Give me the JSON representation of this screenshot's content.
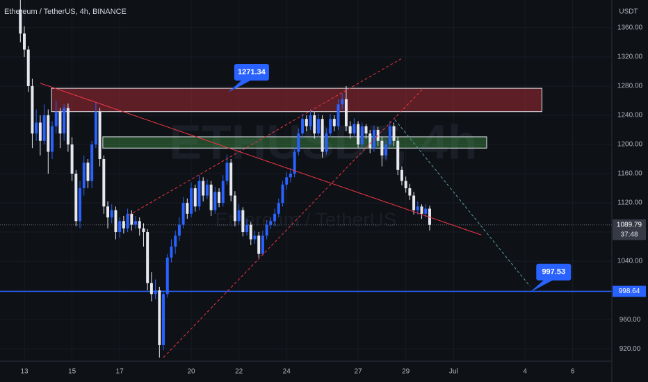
{
  "header": {
    "symbol": "Ethereum / TetherUS, 4h, BINANCE",
    "currency": "USDT",
    "watermark": "ETHUSDT, 4h",
    "watermark_sub": "Ethereum / TetherUS"
  },
  "chart_data": {
    "type": "candlestick",
    "x": [
      -4,
      0,
      4,
      8,
      12,
      16,
      20,
      24,
      28,
      32,
      36,
      40,
      44,
      48,
      52,
      56,
      60,
      64,
      68,
      72,
      76,
      80,
      84,
      88,
      92,
      96,
      100,
      104,
      108,
      112,
      116,
      120,
      124,
      128,
      132,
      136,
      140,
      144,
      148,
      152,
      156,
      160,
      164,
      168,
      172,
      176,
      180,
      184,
      188,
      192,
      196,
      200,
      204,
      208,
      212,
      216,
      220,
      224,
      228,
      232,
      236,
      240,
      244,
      248,
      252,
      256,
      260,
      264,
      268,
      272,
      276,
      280,
      284,
      288,
      292,
      296,
      300,
      304,
      308,
      312,
      316,
      320,
      324,
      328,
      332,
      336,
      340,
      344,
      348,
      352,
      356,
      360,
      364,
      368,
      372,
      376,
      380,
      384,
      388,
      392,
      396,
      400,
      404,
      408
    ],
    "candles": [
      [
        1385,
        1398,
        1340,
        1352
      ],
      [
        1352,
        1362,
        1320,
        1330
      ],
      [
        1330,
        1335,
        1272,
        1280
      ],
      [
        1280,
        1290,
        1195,
        1215
      ],
      [
        1215,
        1248,
        1205,
        1230
      ],
      [
        1230,
        1240,
        1185,
        1205
      ],
      [
        1205,
        1255,
        1200,
        1240
      ],
      [
        1240,
        1248,
        1160,
        1190
      ],
      [
        1190,
        1232,
        1180,
        1225
      ],
      [
        1225,
        1260,
        1215,
        1245
      ],
      [
        1245,
        1250,
        1195,
        1215
      ],
      [
        1215,
        1255,
        1205,
        1250
      ],
      [
        1250,
        1256,
        1190,
        1200
      ],
      [
        1200,
        1210,
        1150,
        1160
      ],
      [
        1160,
        1165,
        1088,
        1095
      ],
      [
        1095,
        1150,
        1085,
        1140
      ],
      [
        1140,
        1185,
        1130,
        1175
      ],
      [
        1175,
        1180,
        1140,
        1150
      ],
      [
        1150,
        1205,
        1140,
        1200
      ],
      [
        1200,
        1258,
        1195,
        1245
      ],
      [
        1245,
        1250,
        1170,
        1180
      ],
      [
        1180,
        1185,
        1105,
        1115
      ],
      [
        1115,
        1122,
        1085,
        1100
      ],
      [
        1100,
        1118,
        1092,
        1110
      ],
      [
        1110,
        1115,
        1070,
        1080
      ],
      [
        1080,
        1100,
        1072,
        1095
      ],
      [
        1095,
        1102,
        1078,
        1085
      ],
      [
        1085,
        1112,
        1080,
        1105
      ],
      [
        1105,
        1110,
        1082,
        1090
      ],
      [
        1090,
        1102,
        1084,
        1095
      ],
      [
        1095,
        1100,
        1075,
        1085
      ],
      [
        1085,
        1092,
        1060,
        1080
      ],
      [
        1080,
        1084,
        1000,
        1010
      ],
      [
        1010,
        1025,
        985,
        995
      ],
      [
        995,
        1015,
        988,
        1000
      ],
      [
        1000,
        1005,
        908,
        925
      ],
      [
        925,
        1000,
        918,
        995
      ],
      [
        995,
        1050,
        990,
        1045
      ],
      [
        1045,
        1070,
        1038,
        1060
      ],
      [
        1060,
        1082,
        1050,
        1075
      ],
      [
        1075,
        1100,
        1068,
        1090
      ],
      [
        1090,
        1128,
        1085,
        1120
      ],
      [
        1120,
        1126,
        1098,
        1105
      ],
      [
        1105,
        1148,
        1100,
        1140
      ],
      [
        1140,
        1145,
        1108,
        1115
      ],
      [
        1115,
        1158,
        1110,
        1150
      ],
      [
        1150,
        1155,
        1122,
        1130
      ],
      [
        1130,
        1152,
        1125,
        1145
      ],
      [
        1145,
        1150,
        1102,
        1110
      ],
      [
        1110,
        1142,
        1105,
        1135
      ],
      [
        1135,
        1140,
        1114,
        1120
      ],
      [
        1120,
        1158,
        1115,
        1150
      ],
      [
        1150,
        1186,
        1145,
        1175
      ],
      [
        1175,
        1180,
        1122,
        1130
      ],
      [
        1130,
        1136,
        1088,
        1095
      ],
      [
        1095,
        1118,
        1090,
        1110
      ],
      [
        1110,
        1114,
        1074,
        1080
      ],
      [
        1080,
        1098,
        1075,
        1090
      ],
      [
        1090,
        1094,
        1062,
        1070
      ],
      [
        1070,
        1082,
        1064,
        1075
      ],
      [
        1075,
        1080,
        1045,
        1050
      ],
      [
        1050,
        1082,
        1048,
        1075
      ],
      [
        1075,
        1096,
        1070,
        1090
      ],
      [
        1090,
        1100,
        1084,
        1095
      ],
      [
        1095,
        1112,
        1088,
        1105
      ],
      [
        1105,
        1126,
        1100,
        1120
      ],
      [
        1120,
        1150,
        1115,
        1145
      ],
      [
        1145,
        1162,
        1138,
        1155
      ],
      [
        1155,
        1168,
        1148,
        1160
      ],
      [
        1160,
        1196,
        1155,
        1190
      ],
      [
        1190,
        1222,
        1185,
        1215
      ],
      [
        1215,
        1242,
        1208,
        1235
      ],
      [
        1235,
        1240,
        1218,
        1225
      ],
      [
        1225,
        1248,
        1220,
        1240
      ],
      [
        1240,
        1245,
        1208,
        1215
      ],
      [
        1215,
        1242,
        1210,
        1235
      ],
      [
        1235,
        1240,
        1182,
        1190
      ],
      [
        1190,
        1222,
        1186,
        1215
      ],
      [
        1215,
        1242,
        1210,
        1235
      ],
      [
        1235,
        1240,
        1218,
        1225
      ],
      [
        1225,
        1262,
        1220,
        1255
      ],
      [
        1255,
        1270,
        1248,
        1262
      ],
      [
        1262,
        1280,
        1218,
        1225
      ],
      [
        1225,
        1232,
        1208,
        1215
      ],
      [
        1215,
        1236,
        1210,
        1228
      ],
      [
        1228,
        1232,
        1195,
        1200
      ],
      [
        1200,
        1230,
        1196,
        1225
      ],
      [
        1225,
        1228,
        1208,
        1215
      ],
      [
        1215,
        1220,
        1188,
        1195
      ],
      [
        1195,
        1226,
        1190,
        1220
      ],
      [
        1220,
        1224,
        1198,
        1205
      ],
      [
        1205,
        1210,
        1170,
        1185
      ],
      [
        1185,
        1206,
        1178,
        1200
      ],
      [
        1200,
        1232,
        1196,
        1225
      ],
      [
        1225,
        1230,
        1198,
        1205
      ],
      [
        1205,
        1210,
        1158,
        1165
      ],
      [
        1165,
        1170,
        1144,
        1150
      ],
      [
        1150,
        1156,
        1134,
        1140
      ],
      [
        1140,
        1146,
        1124,
        1130
      ],
      [
        1130,
        1135,
        1104,
        1110
      ],
      [
        1110,
        1122,
        1104,
        1115
      ],
      [
        1115,
        1118,
        1098,
        1105
      ],
      [
        1105,
        1118,
        1100,
        1112
      ],
      [
        1112,
        1116,
        1082,
        1089.79
      ]
    ],
    "up_color": "#2962ff",
    "down_color": "#e6e8ef",
    "xlim": [
      -24.5,
      591.4
    ],
    "xticks": [
      {
        "value": 0,
        "label": "13"
      },
      {
        "value": 48,
        "label": "15"
      },
      {
        "value": 96,
        "label": "17"
      },
      {
        "value": 168,
        "label": "20"
      },
      {
        "value": 216,
        "label": "22"
      },
      {
        "value": 264,
        "label": "24"
      },
      {
        "value": 336,
        "label": "27"
      },
      {
        "value": 384,
        "label": "29"
      },
      {
        "value": 432,
        "label": "Jul"
      },
      {
        "value": 504,
        "label": "4"
      },
      {
        "value": 552,
        "label": "6"
      }
    ],
    "ylim": [
      903,
      1398
    ],
    "yticks": [
      {
        "value": 920,
        "label": "920.00"
      },
      {
        "value": 960,
        "label": "960.00"
      },
      {
        "value": 1000,
        "label": "1000.00"
      },
      {
        "value": 1040,
        "label": "1040.00"
      },
      {
        "value": 1080,
        "label": "1080.00"
      },
      {
        "value": 1120,
        "label": "1120.00"
      },
      {
        "value": 1160,
        "label": "1160.00"
      },
      {
        "value": 1200,
        "label": "1200.00"
      },
      {
        "value": 1240,
        "label": "1240.00"
      },
      {
        "value": 1280,
        "label": "1280.00"
      },
      {
        "value": 1320,
        "label": "1320.00"
      },
      {
        "value": 1360,
        "label": "1360.00"
      }
    ],
    "grid": true,
    "last_price": 1089.79,
    "countdown": "37:48",
    "levels": [
      {
        "price": 998.64,
        "color": "#2962ff"
      }
    ],
    "zones": [
      {
        "x": [
          27.4,
          521
        ],
        "y": [
          1245,
          1277
        ],
        "color": "#f23645"
      },
      {
        "x": [
          79,
          465.4
        ],
        "y": [
          1195,
          1210.5
        ],
        "color": "#4caf50"
      }
    ],
    "lines": [
      {
        "x": [
          16,
          460
        ],
        "y": [
          1284,
          1076
        ],
        "color": "#f23645",
        "dashed": false
      },
      {
        "x": [
          105,
          380
        ],
        "y": [
          1103,
          1318
        ],
        "color": "#f23645",
        "dashed": true
      },
      {
        "x": [
          140,
          401
        ],
        "y": [
          908,
          1276
        ],
        "color": "#f23645",
        "dashed": true
      },
      {
        "x": [
          373,
          509
        ],
        "y": [
          1234,
          1005.6
        ],
        "color": "#5b9ea6",
        "dashed": true
      }
    ],
    "callouts": [
      {
        "x": 205,
        "y": 1271.34
      },
      {
        "x": 509,
        "y": 997.53
      }
    ]
  }
}
